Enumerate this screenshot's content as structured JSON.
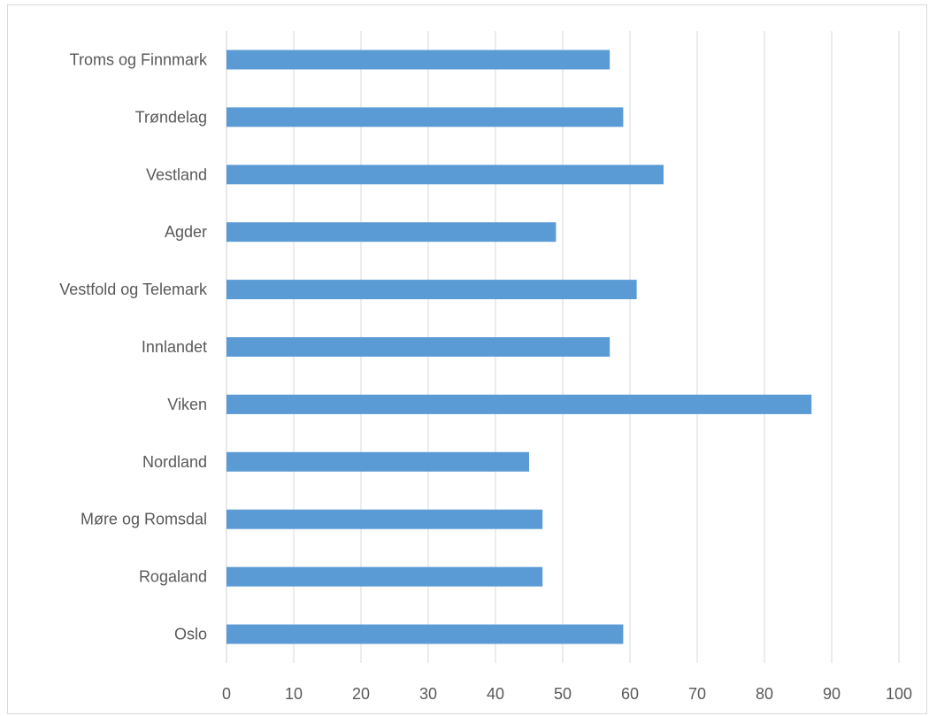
{
  "chart_data": {
    "type": "bar",
    "orientation": "horizontal",
    "categories": [
      "Troms og Finnmark",
      "Trøndelag",
      "Vestland",
      "Agder",
      "Vestfold og Telemark",
      "Innlandet",
      "Viken",
      "Nordland",
      "Møre og Romsdal",
      "Rogaland",
      "Oslo"
    ],
    "values": [
      57,
      59,
      65,
      49,
      61,
      57,
      87,
      45,
      47,
      47,
      59
    ],
    "xlim": [
      0,
      100
    ],
    "x_ticks": [
      "0",
      "10",
      "20",
      "30",
      "40",
      "50",
      "60",
      "70",
      "80",
      "90",
      "100"
    ],
    "grid": "vertical",
    "legend": "none",
    "colors": {
      "bar": "#5b9bd5",
      "grid": "#d9d9d9",
      "text": "#595959",
      "frame": "#d9d9d9"
    }
  }
}
